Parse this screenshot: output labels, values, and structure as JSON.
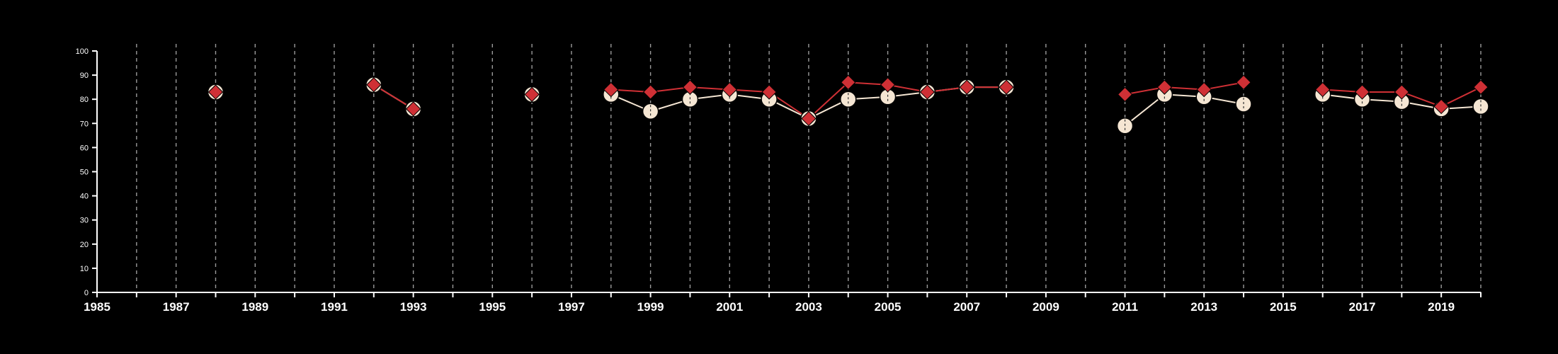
{
  "chart_data": {
    "type": "line",
    "title": "",
    "xlabel": "",
    "ylabel": "",
    "xlim": [
      1985,
      2020
    ],
    "ylim": [
      0,
      100
    ],
    "x_ticks": [
      1985,
      1987,
      1989,
      1991,
      1993,
      1995,
      1997,
      1999,
      2001,
      2003,
      2005,
      2007,
      2009,
      2011,
      2013,
      2015,
      2017,
      2019
    ],
    "y_ticks": [
      0,
      10,
      20,
      30,
      40,
      50,
      60,
      70,
      80,
      90,
      100
    ],
    "vertical_dashed_gridlines_every_year": true,
    "series": [
      {
        "marker": "circle",
        "color": "#f5e6d3",
        "points": [
          {
            "x": 1988,
            "y": 83
          },
          {
            "x": 1992,
            "y": 86
          },
          {
            "x": 1993,
            "y": 76
          },
          {
            "x": 1996,
            "y": 82
          },
          {
            "x": 1998,
            "y": 82
          },
          {
            "x": 1999,
            "y": 75
          },
          {
            "x": 2000,
            "y": 80
          },
          {
            "x": 2001,
            "y": 82
          },
          {
            "x": 2002,
            "y": 80
          },
          {
            "x": 2003,
            "y": 72
          },
          {
            "x": 2004,
            "y": 80
          },
          {
            "x": 2005,
            "y": 81
          },
          {
            "x": 2006,
            "y": 83
          },
          {
            "x": 2007,
            "y": 85
          },
          {
            "x": 2008,
            "y": 85
          },
          {
            "x": 2011,
            "y": 69
          },
          {
            "x": 2012,
            "y": 82
          },
          {
            "x": 2013,
            "y": 81
          },
          {
            "x": 2014,
            "y": 78
          },
          {
            "x": 2016,
            "y": 82
          },
          {
            "x": 2017,
            "y": 80
          },
          {
            "x": 2018,
            "y": 79
          },
          {
            "x": 2019,
            "y": 76
          },
          {
            "x": 2020,
            "y": 77
          }
        ]
      },
      {
        "marker": "diamond",
        "color": "#cf3035",
        "points": [
          {
            "x": 1988,
            "y": 83
          },
          {
            "x": 1992,
            "y": 86
          },
          {
            "x": 1993,
            "y": 76
          },
          {
            "x": 1996,
            "y": 82
          },
          {
            "x": 1998,
            "y": 84
          },
          {
            "x": 1999,
            "y": 83
          },
          {
            "x": 2000,
            "y": 85
          },
          {
            "x": 2001,
            "y": 84
          },
          {
            "x": 2002,
            "y": 83
          },
          {
            "x": 2003,
            "y": 72
          },
          {
            "x": 2004,
            "y": 87
          },
          {
            "x": 2005,
            "y": 86
          },
          {
            "x": 2006,
            "y": 83
          },
          {
            "x": 2007,
            "y": 85
          },
          {
            "x": 2008,
            "y": 85
          },
          {
            "x": 2011,
            "y": 82
          },
          {
            "x": 2012,
            "y": 85
          },
          {
            "x": 2013,
            "y": 84
          },
          {
            "x": 2014,
            "y": 87
          },
          {
            "x": 2016,
            "y": 84
          },
          {
            "x": 2017,
            "y": 83
          },
          {
            "x": 2018,
            "y": 83
          },
          {
            "x": 2019,
            "y": 77
          },
          {
            "x": 2020,
            "y": 85
          }
        ]
      }
    ]
  }
}
